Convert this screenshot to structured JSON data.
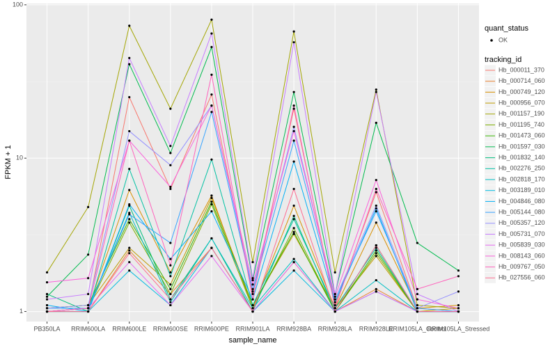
{
  "chart_data": {
    "type": "line",
    "x_label": "sample_name",
    "y_label": "FPKM + 1",
    "categories": [
      "PB350LA",
      "RRIM600LA",
      "RRIM600LE",
      "RRIM600SE",
      "RRIM600PE",
      "RRIM901LA",
      "RRIM928BA",
      "RRIM928LA",
      "RRIM928LE",
      "RRIM105LA_Control",
      "RRIM105LA_Stressed"
    ],
    "ylim": [
      0.86,
      102
    ],
    "yticks": [
      1,
      10,
      100
    ],
    "log_y": true,
    "grid": true,
    "legend": "right",
    "point_legend_title": "quant_status",
    "point_legend_label": "OK",
    "point_color": "#000000",
    "legend_title": "tracking_id",
    "series": [
      {
        "name": "Hb_000011_370",
        "color": "#F8766D",
        "values": [
          1.0,
          1.05,
          25,
          6.3,
          26,
          1.3,
          21,
          1.1,
          6.0,
          1.05,
          1.0
        ]
      },
      {
        "name": "Hb_000714_060",
        "color": "#EA8331",
        "values": [
          1.0,
          1.0,
          2.5,
          1.3,
          2.6,
          1.0,
          2.1,
          1.0,
          1.4,
          1.0,
          1.0
        ]
      },
      {
        "name": "Hb_000749_120",
        "color": "#D89000",
        "values": [
          1.0,
          1.05,
          6.2,
          1.8,
          5.7,
          1.05,
          4.9,
          1.05,
          3.8,
          1.05,
          1.1
        ]
      },
      {
        "name": "Hb_000956_070",
        "color": "#C09B00",
        "values": [
          1.05,
          1.1,
          2.6,
          1.5,
          5.5,
          1.1,
          3.2,
          1.05,
          2.3,
          1.0,
          1.05
        ]
      },
      {
        "name": "Hb_001157_190",
        "color": "#A3A500",
        "values": [
          1.8,
          4.8,
          73,
          21,
          80,
          2.1,
          67,
          1.8,
          28,
          1.1,
          1.05
        ]
      },
      {
        "name": "Hb_001195_740",
        "color": "#7CAE00",
        "values": [
          1.0,
          1.05,
          3.8,
          1.3,
          5.0,
          1.05,
          3.5,
          1.0,
          2.4,
          1.0,
          1.0
        ]
      },
      {
        "name": "Hb_001473_060",
        "color": "#39B600",
        "values": [
          1.05,
          1.1,
          4.0,
          1.4,
          5.2,
          1.1,
          3.3,
          1.0,
          2.5,
          1.0,
          1.0
        ]
      },
      {
        "name": "Hb_001597_030",
        "color": "#00BB4E",
        "values": [
          1.25,
          2.35,
          41,
          10.8,
          53,
          1.6,
          27,
          1.3,
          17,
          2.8,
          1.85
        ]
      },
      {
        "name": "Hb_001832_140",
        "color": "#00BF7D",
        "values": [
          1.3,
          1.0,
          4.9,
          1.2,
          3.0,
          1.0,
          4.2,
          1.0,
          2.7,
          1.0,
          1.0
        ]
      },
      {
        "name": "Hb_002276_250",
        "color": "#00C1A3",
        "values": [
          1.0,
          1.0,
          8.5,
          1.7,
          9.8,
          1.1,
          4.0,
          1.05,
          2.6,
          1.0,
          1.0
        ]
      },
      {
        "name": "Hb_002818_170",
        "color": "#00BFC4",
        "values": [
          1.0,
          1.05,
          4.4,
          1.15,
          3.0,
          1.05,
          2.2,
          1.0,
          1.6,
          1.0,
          1.0
        ]
      },
      {
        "name": "Hb_003189_010",
        "color": "#00BAE0",
        "values": [
          1.0,
          1.0,
          1.85,
          1.1,
          2.6,
          1.0,
          1.85,
          1.0,
          1.35,
          1.0,
          1.0
        ]
      },
      {
        "name": "Hb_004846_080",
        "color": "#00B0F6",
        "values": [
          1.1,
          1.0,
          5.0,
          2.2,
          4.5,
          1.2,
          9.5,
          1.15,
          4.7,
          1.0,
          1.0
        ]
      },
      {
        "name": "Hb_005144_080",
        "color": "#35A2FF",
        "values": [
          1.05,
          1.05,
          4.3,
          2.8,
          20,
          1.35,
          13,
          1.2,
          4.5,
          1.05,
          1.0
        ]
      },
      {
        "name": "Hb_005357_120",
        "color": "#9590FF",
        "values": [
          1.05,
          1.1,
          15,
          9.0,
          22,
          1.4,
          16,
          1.2,
          4.9,
          1.05,
          1.35
        ]
      },
      {
        "name": "Hb_005731_070",
        "color": "#C77CFF",
        "values": [
          1.2,
          1.3,
          45,
          12,
          65,
          1.65,
          57,
          1.3,
          27,
          1.3,
          1.0
        ]
      },
      {
        "name": "Hb_005839_030",
        "color": "#E76BF3",
        "values": [
          1.0,
          1.05,
          2.1,
          1.1,
          2.3,
          1.0,
          2.1,
          1.0,
          1.35,
          1.0,
          1.0
        ]
      },
      {
        "name": "Hb_008143_060",
        "color": "#FA62DB",
        "values": [
          1.55,
          1.65,
          13,
          6.5,
          22,
          1.5,
          15,
          1.25,
          7.2,
          1.2,
          1.05
        ]
      },
      {
        "name": "Hb_009767_050",
        "color": "#FF62BC",
        "values": [
          1.0,
          1.05,
          13,
          2.0,
          35,
          1.2,
          22,
          1.05,
          6.3,
          1.4,
          1.7
        ]
      },
      {
        "name": "Hb_027556_060",
        "color": "#FF6C91",
        "values": [
          1.0,
          1.0,
          2.4,
          1.2,
          2.6,
          1.0,
          6.3,
          1.0,
          2.7,
          1.0,
          1.0
        ]
      }
    ]
  }
}
